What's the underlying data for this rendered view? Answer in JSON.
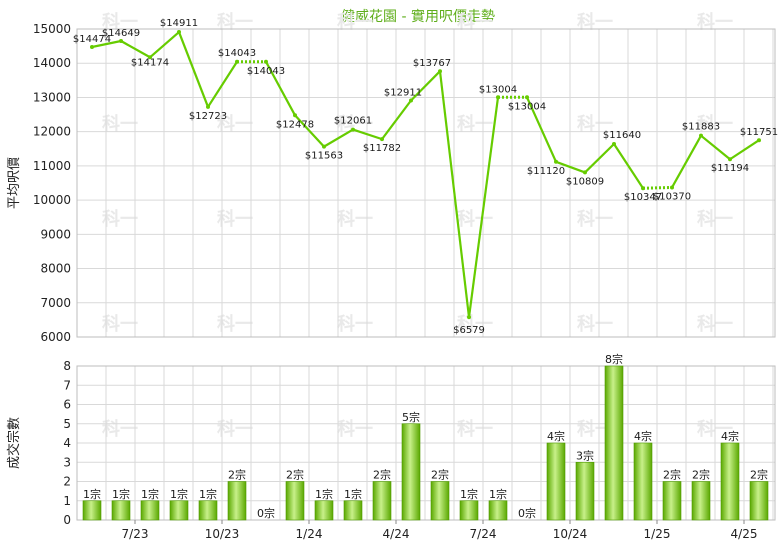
{
  "title": "健威花園 - 實用呎價走勢",
  "watermark_text": "科一",
  "colors": {
    "line": "#66cc00",
    "bar_light": "#c8f08a",
    "bar_dark": "#5aa800",
    "title": "#5fae1b",
    "grid": "#d9d9d9"
  },
  "chart_data": [
    {
      "type": "line",
      "title": "健威花園 - 實用呎價走勢",
      "ylabel": "平均呎價",
      "ylim": [
        6000,
        15000
      ],
      "yticks": [
        6000,
        7000,
        8000,
        9000,
        10000,
        11000,
        12000,
        13000,
        14000,
        15000
      ],
      "grid": true,
      "values": [
        14474,
        14649,
        14174,
        14911,
        12723,
        14043,
        14043,
        12478,
        11563,
        12061,
        11782,
        12911,
        13767,
        6579,
        13004,
        13004,
        11120,
        10809,
        11640,
        10347,
        10370,
        11883,
        11194,
        11751
      ],
      "labels": [
        "$14474",
        "$14649",
        "$14174",
        "$14911",
        "$12723",
        "$14043",
        "$14043",
        "$12478",
        "$11563",
        "$12061",
        "$11782",
        "$12911",
        "$13767",
        "$6579",
        "$13004",
        "$13004",
        "$11120",
        "$10809",
        "$11640",
        "$10347",
        "$10370",
        "$11883",
        "$11194",
        "$11751"
      ],
      "dotted_segments": [
        5,
        14,
        19
      ]
    },
    {
      "type": "bar",
      "ylabel": "成交宗數",
      "ylim": [
        0,
        8
      ],
      "yticks": [
        0,
        1,
        2,
        3,
        4,
        5,
        6,
        7,
        8
      ],
      "grid": true,
      "values": [
        1,
        1,
        1,
        1,
        1,
        2,
        0,
        2,
        1,
        1,
        2,
        5,
        2,
        1,
        1,
        0,
        4,
        3,
        8,
        4,
        2,
        2,
        4,
        2
      ],
      "labels": [
        "1宗",
        "1宗",
        "1宗",
        "1宗",
        "1宗",
        "2宗",
        "0宗",
        "2宗",
        "1宗",
        "1宗",
        "2宗",
        "5宗",
        "2宗",
        "1宗",
        "1宗",
        "0宗",
        "4宗",
        "3宗",
        "8宗",
        "4宗",
        "2宗",
        "2宗",
        "4宗",
        "2宗"
      ],
      "xtick_labels": [
        "7/23",
        "10/23",
        "1/24",
        "4/24",
        "7/24",
        "10/24",
        "1/25",
        "4/25"
      ],
      "xtick_after_index": [
        1,
        4,
        7,
        10,
        13,
        16,
        19,
        22
      ]
    }
  ]
}
